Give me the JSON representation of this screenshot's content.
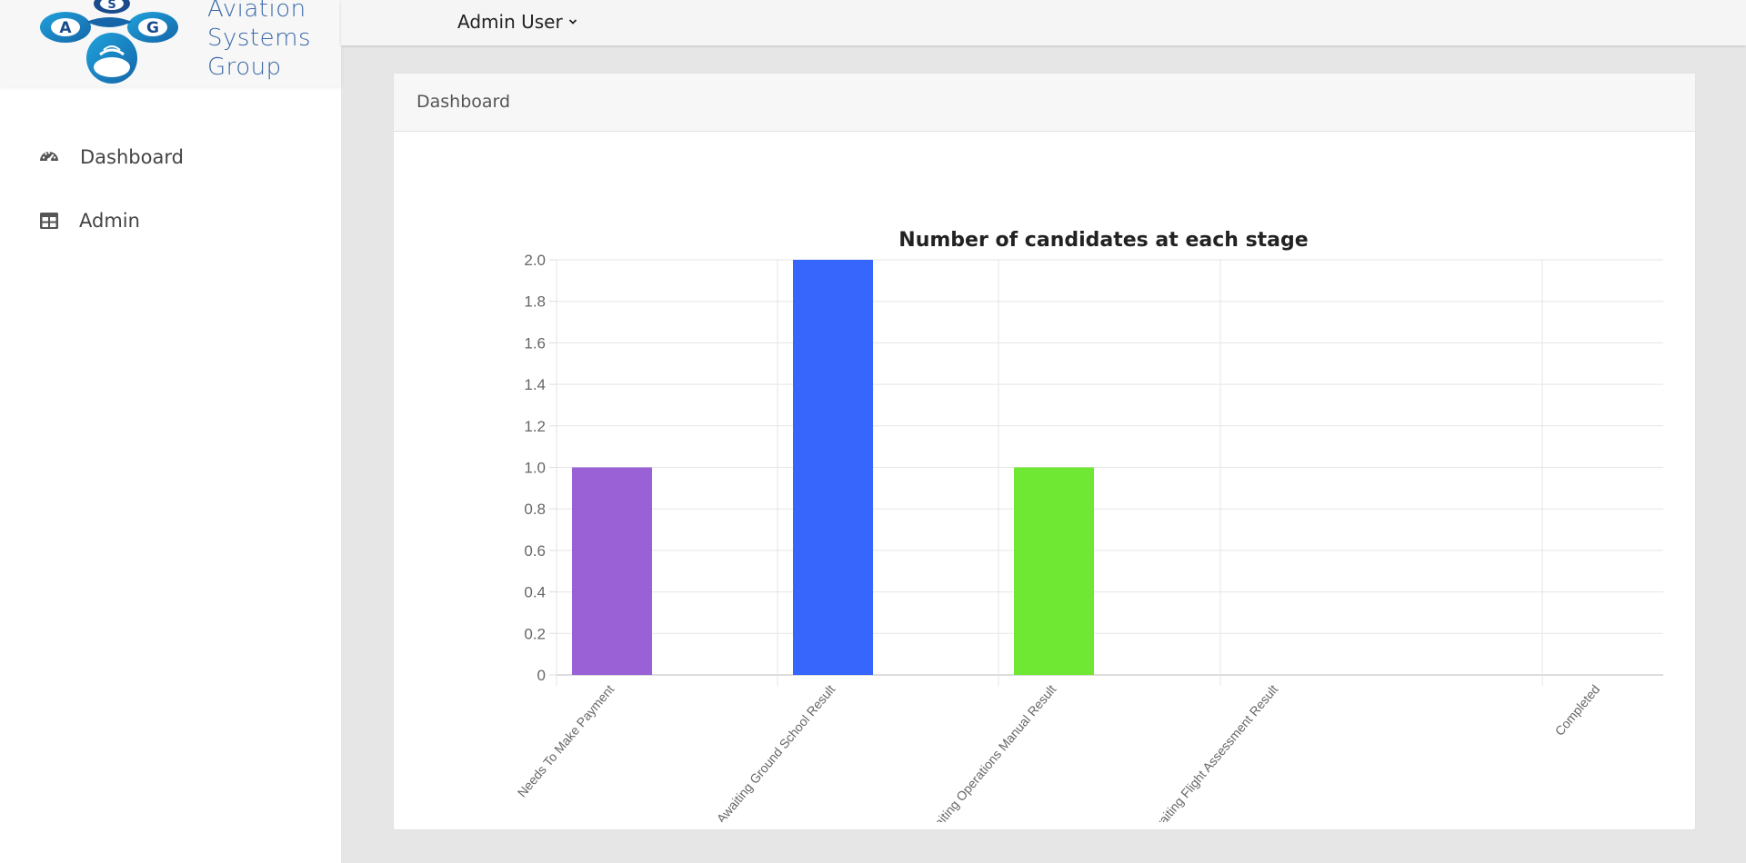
{
  "brand": {
    "logo_letters": [
      "A",
      "S",
      "G"
    ],
    "name_lines": [
      "Aviation",
      "Systems",
      "Group"
    ]
  },
  "sidebar": {
    "items": [
      {
        "label": "Dashboard",
        "icon": "gauge-icon"
      },
      {
        "label": "Admin",
        "icon": "table-icon"
      }
    ]
  },
  "topbar": {
    "user_label": "Admin User"
  },
  "card": {
    "title": "Dashboard"
  },
  "colors": {
    "bar_purple": "#9a61d6",
    "bar_blue": "#3666fb",
    "bar_green": "#6fe834",
    "brand_blue": "#3b6aa8"
  },
  "chart_data": {
    "type": "bar",
    "title": "Number of candidates at each stage",
    "categories": [
      "Needs To Make Payment",
      "Awaiting Ground School Result",
      "Awaiting Operations Manual Result",
      "Awaiting Flight Assessment Result",
      "Completed"
    ],
    "values": [
      1,
      2,
      1,
      0,
      0
    ],
    "bar_colors": [
      "#9a61d6",
      "#3666fb",
      "#6fe834"
    ],
    "ylim": [
      0,
      2
    ],
    "yticks": [
      "0",
      "0.2",
      "0.4",
      "0.6",
      "0.8",
      "1.0",
      "1.2",
      "1.4",
      "1.6",
      "1.8",
      "2.0"
    ],
    "grid": true,
    "legend": "none"
  }
}
